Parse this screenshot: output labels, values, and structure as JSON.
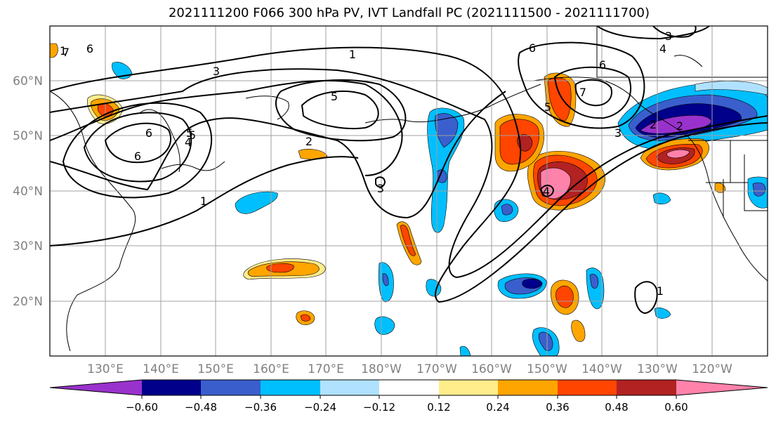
{
  "title": "2021111200 F066 300 hPa PV, IVT Landfall PC (2021111500 - 2021111700)",
  "map": {
    "lon_labels": [
      "130°E",
      "140°E",
      "150°E",
      "160°E",
      "170°E",
      "180°W",
      "170°W",
      "160°W",
      "150°W",
      "140°W",
      "130°W",
      "120°W"
    ],
    "lat_labels": [
      "60°N",
      "50°N",
      "40°N",
      "30°N",
      "20°N"
    ],
    "label_color": "#808080",
    "grid_color": "#a0a0a0"
  },
  "contours": {
    "labels": [
      "1",
      "1",
      "1",
      "1",
      "2",
      "2",
      "2",
      "3",
      "3",
      "3",
      "3",
      "4",
      "4",
      "4",
      "5",
      "5",
      "5",
      "5",
      "6",
      "6",
      "6",
      "6",
      "6",
      "7",
      "7"
    ]
  },
  "colorbar": {
    "ticks": [
      "−0.60",
      "−0.48",
      "−0.36",
      "−0.24",
      "−0.12",
      "0.12",
      "0.24",
      "0.36",
      "0.48",
      "0.60"
    ],
    "colors": [
      "#9932cc",
      "#00008b",
      "#3a5fcd",
      "#00bfff",
      "#b0e2ff",
      "#ffffff",
      "#ffec8b",
      "#ffa500",
      "#ff4500",
      "#b22222",
      "#ff82ab"
    ]
  }
}
